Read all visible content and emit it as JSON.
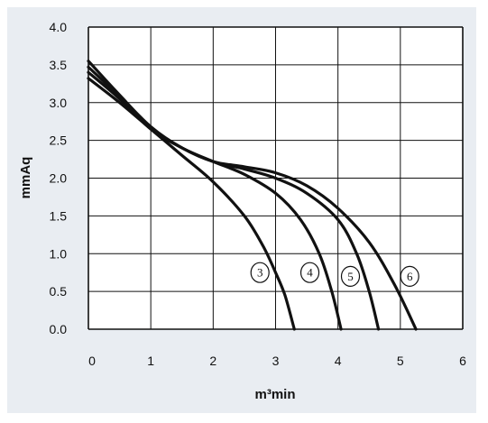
{
  "chart_data": {
    "type": "line",
    "xlabel": "m³min",
    "ylabel": "mmAq",
    "xlim": [
      0,
      6
    ],
    "ylim": [
      0.0,
      4.0
    ],
    "x_ticks": [
      "0",
      "1",
      "2",
      "3",
      "4",
      "5",
      "6"
    ],
    "y_ticks": [
      "0.0",
      "0.5",
      "1.0",
      "1.5",
      "2.0",
      "2.5",
      "3.0",
      "3.5",
      "4.0"
    ],
    "grid": true,
    "colors": {
      "background": "#e9edf2",
      "plot": "#ffffff",
      "line": "#111111"
    },
    "series": [
      {
        "name": "3",
        "points": [
          [
            0.0,
            3.32
          ],
          [
            0.5,
            3.0
          ],
          [
            1.0,
            2.65
          ],
          [
            1.5,
            2.3
          ],
          [
            2.0,
            1.95
          ],
          [
            2.5,
            1.5
          ],
          [
            2.8,
            1.1
          ],
          [
            3.0,
            0.75
          ],
          [
            3.15,
            0.45
          ],
          [
            3.3,
            0.0
          ]
        ]
      },
      {
        "name": "4",
        "points": [
          [
            0.0,
            3.4
          ],
          [
            0.5,
            3.05
          ],
          [
            1.0,
            2.65
          ],
          [
            1.5,
            2.4
          ],
          [
            2.0,
            2.22
          ],
          [
            2.5,
            2.05
          ],
          [
            3.0,
            1.8
          ],
          [
            3.4,
            1.45
          ],
          [
            3.7,
            1.0
          ],
          [
            3.9,
            0.5
          ],
          [
            4.05,
            0.0
          ]
        ]
      },
      {
        "name": "5",
        "points": [
          [
            0.0,
            3.47
          ],
          [
            0.5,
            3.08
          ],
          [
            1.0,
            2.67
          ],
          [
            1.5,
            2.4
          ],
          [
            2.0,
            2.22
          ],
          [
            2.5,
            2.12
          ],
          [
            3.0,
            2.0
          ],
          [
            3.5,
            1.8
          ],
          [
            4.0,
            1.45
          ],
          [
            4.3,
            1.0
          ],
          [
            4.5,
            0.5
          ],
          [
            4.65,
            0.0
          ]
        ]
      },
      {
        "name": "6",
        "points": [
          [
            0.0,
            3.55
          ],
          [
            0.5,
            3.1
          ],
          [
            1.0,
            2.68
          ],
          [
            1.5,
            2.4
          ],
          [
            2.0,
            2.22
          ],
          [
            2.5,
            2.15
          ],
          [
            3.0,
            2.07
          ],
          [
            3.5,
            1.9
          ],
          [
            4.0,
            1.6
          ],
          [
            4.5,
            1.15
          ],
          [
            4.9,
            0.6
          ],
          [
            5.25,
            0.0
          ]
        ]
      }
    ],
    "curve_labels": [
      {
        "text": "3",
        "x": 2.75,
        "y": 0.75
      },
      {
        "text": "4",
        "x": 3.55,
        "y": 0.75
      },
      {
        "text": "5",
        "x": 4.2,
        "y": 0.7
      },
      {
        "text": "6",
        "x": 5.15,
        "y": 0.7
      }
    ]
  }
}
